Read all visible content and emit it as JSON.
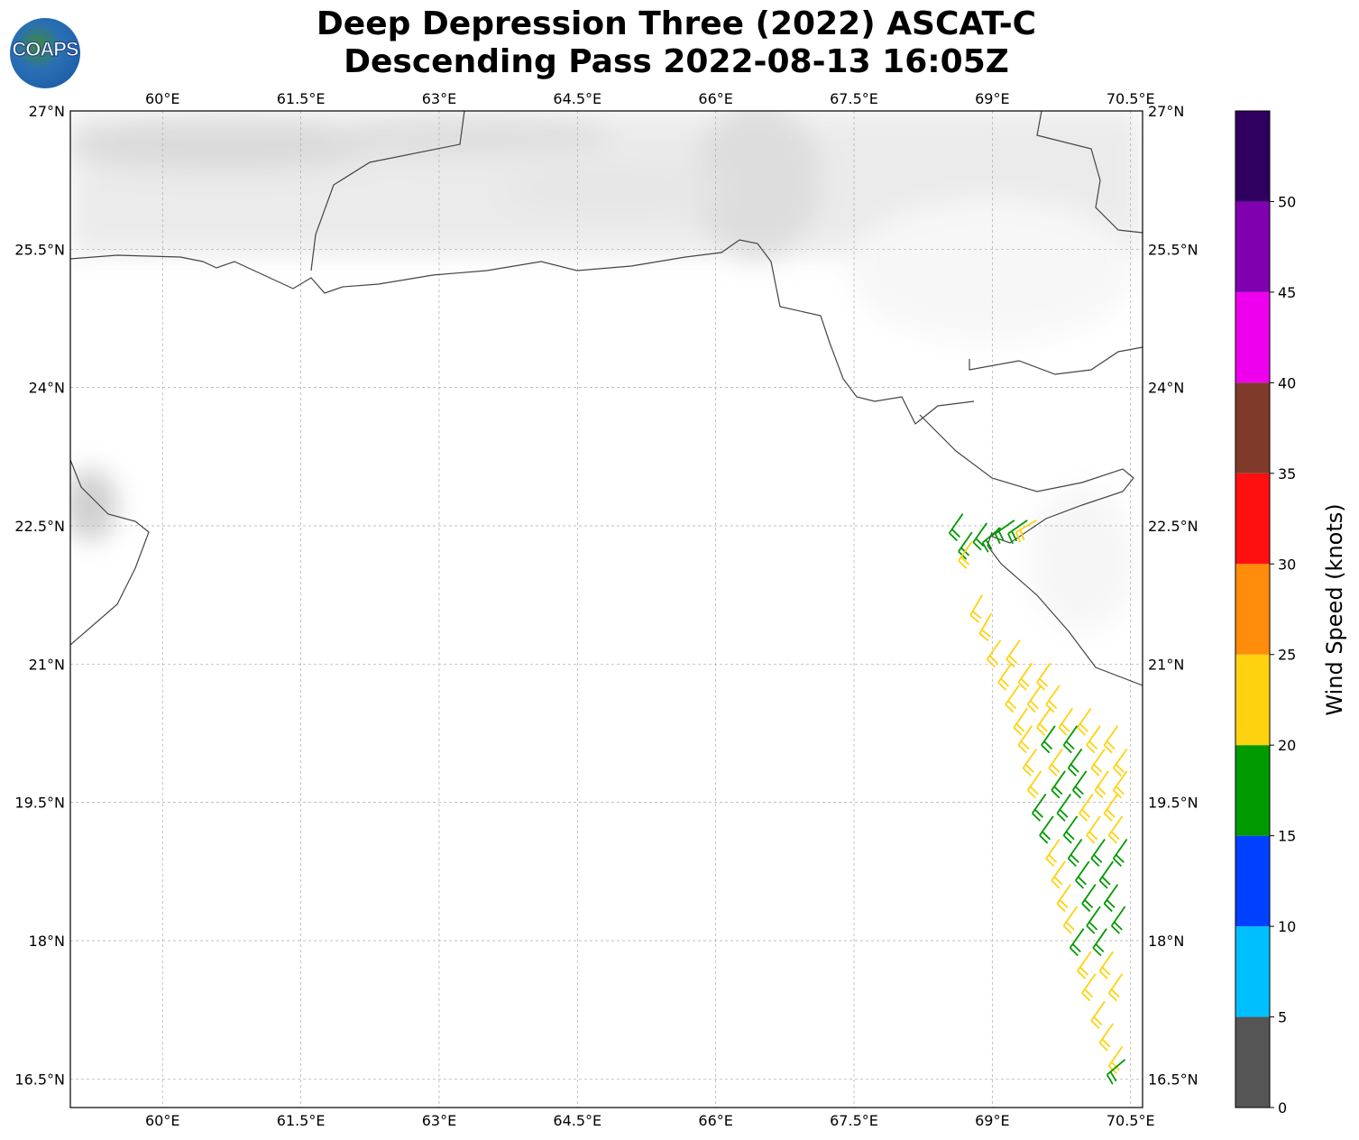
{
  "header": {
    "title_line1": "Deep Depression Three (2022) ASCAT-C",
    "title_line2": "Descending Pass 2022-08-13 16:05Z",
    "logo_text": "COAPS"
  },
  "chart_data": {
    "type": "map-wind-barbs",
    "lon_range": [
      59.0,
      70.63
    ],
    "lat_range": [
      16.19,
      27.0
    ],
    "lon_ticks": [
      {
        "v": 60,
        "label": "60°E"
      },
      {
        "v": 61.5,
        "label": "61.5°E"
      },
      {
        "v": 63,
        "label": "63°E"
      },
      {
        "v": 64.5,
        "label": "64.5°E"
      },
      {
        "v": 66,
        "label": "66°E"
      },
      {
        "v": 67.5,
        "label": "67.5°E"
      },
      {
        "v": 69,
        "label": "69°E"
      },
      {
        "v": 70.5,
        "label": "70.5°E"
      }
    ],
    "lat_ticks": [
      {
        "v": 27,
        "label": "27°N"
      },
      {
        "v": 25.5,
        "label": "25.5°N"
      },
      {
        "v": 24,
        "label": "24°N"
      },
      {
        "v": 22.5,
        "label": "22.5°N"
      },
      {
        "v": 21,
        "label": "21°N"
      },
      {
        "v": 19.5,
        "label": "19.5°N"
      },
      {
        "v": 18,
        "label": "18°N"
      },
      {
        "v": 16.5,
        "label": "16.5°N"
      }
    ],
    "grid": true,
    "colorbar": {
      "label": "Wind Speed (knots)",
      "bounds": [
        0,
        5,
        10,
        15,
        20,
        25,
        30,
        35,
        40,
        45,
        50,
        55
      ],
      "colors": [
        "#555555",
        "#00bfff",
        "#0040ff",
        "#009900",
        "#ffd20f",
        "#ff8c0a",
        "#ff1010",
        "#7f3a2a",
        "#ee00ee",
        "#8000b0",
        "#300060"
      ],
      "tick_labels": [
        "0",
        "5",
        "10",
        "15",
        "20",
        "25",
        "30",
        "35",
        "40",
        "45",
        "50"
      ]
    },
    "barbs_fields": [
      "lon",
      "lat",
      "speed_kt",
      "dir_from_deg"
    ],
    "barbs": [
      [
        68.68,
        22.63,
        18,
        215
      ],
      [
        68.78,
        22.43,
        18,
        215
      ],
      [
        68.78,
        22.33,
        22,
        215
      ],
      [
        68.94,
        22.53,
        18,
        215
      ],
      [
        69.09,
        22.48,
        18,
        230
      ],
      [
        69.24,
        22.56,
        18,
        235
      ],
      [
        69.38,
        22.56,
        18,
        235
      ],
      [
        69.48,
        22.56,
        22,
        240
      ],
      [
        68.89,
        21.75,
        22,
        210
      ],
      [
        68.99,
        21.55,
        22,
        210
      ],
      [
        69.09,
        21.26,
        22,
        215
      ],
      [
        69.3,
        21.26,
        22,
        215
      ],
      [
        69.21,
        21.01,
        22,
        215
      ],
      [
        69.43,
        21.01,
        22,
        215
      ],
      [
        69.63,
        21.01,
        22,
        215
      ],
      [
        69.29,
        20.77,
        22,
        215
      ],
      [
        69.53,
        20.77,
        22,
        215
      ],
      [
        69.73,
        20.77,
        22,
        215
      ],
      [
        69.38,
        20.52,
        22,
        215
      ],
      [
        69.63,
        20.52,
        22,
        215
      ],
      [
        69.87,
        20.52,
        22,
        215
      ],
      [
        70.07,
        20.52,
        22,
        215
      ],
      [
        69.43,
        20.33,
        22,
        215
      ],
      [
        69.68,
        20.33,
        18,
        215
      ],
      [
        69.92,
        20.33,
        18,
        215
      ],
      [
        70.17,
        20.33,
        22,
        215
      ],
      [
        70.36,
        20.33,
        22,
        215
      ],
      [
        69.48,
        20.08,
        22,
        215
      ],
      [
        69.76,
        20.08,
        22,
        215
      ],
      [
        69.97,
        20.08,
        18,
        215
      ],
      [
        70.22,
        20.08,
        22,
        215
      ],
      [
        70.46,
        20.08,
        22,
        215
      ],
      [
        69.53,
        19.84,
        22,
        215
      ],
      [
        69.79,
        19.84,
        18,
        215
      ],
      [
        70.02,
        19.84,
        18,
        215
      ],
      [
        70.26,
        19.84,
        22,
        215
      ],
      [
        70.46,
        19.84,
        22,
        215
      ],
      [
        69.58,
        19.59,
        18,
        215
      ],
      [
        69.85,
        19.59,
        18,
        215
      ],
      [
        70.09,
        19.59,
        22,
        215
      ],
      [
        70.36,
        19.59,
        22,
        215
      ],
      [
        69.66,
        19.35,
        18,
        215
      ],
      [
        69.92,
        19.35,
        18,
        215
      ],
      [
        70.17,
        19.35,
        22,
        215
      ],
      [
        70.41,
        19.35,
        22,
        215
      ],
      [
        69.73,
        19.1,
        22,
        215
      ],
      [
        69.97,
        19.1,
        18,
        215
      ],
      [
        70.22,
        19.1,
        18,
        215
      ],
      [
        70.46,
        19.1,
        18,
        215
      ],
      [
        69.79,
        18.86,
        22,
        215
      ],
      [
        70.05,
        18.86,
        18,
        215
      ],
      [
        70.31,
        18.86,
        18,
        215
      ],
      [
        69.85,
        18.61,
        22,
        215
      ],
      [
        70.12,
        18.61,
        18,
        215
      ],
      [
        70.36,
        18.61,
        18,
        215
      ],
      [
        69.92,
        18.37,
        22,
        215
      ],
      [
        70.17,
        18.37,
        18,
        215
      ],
      [
        70.44,
        18.37,
        18,
        215
      ],
      [
        69.99,
        18.13,
        18,
        215
      ],
      [
        70.24,
        18.13,
        18,
        215
      ],
      [
        70.07,
        17.88,
        22,
        215
      ],
      [
        70.31,
        17.88,
        22,
        215
      ],
      [
        70.12,
        17.64,
        22,
        215
      ],
      [
        70.41,
        17.64,
        22,
        215
      ],
      [
        70.22,
        17.34,
        22,
        215
      ],
      [
        70.31,
        17.1,
        22,
        215
      ],
      [
        70.41,
        16.85,
        22,
        215
      ],
      [
        70.44,
        16.71,
        18,
        230
      ]
    ]
  }
}
